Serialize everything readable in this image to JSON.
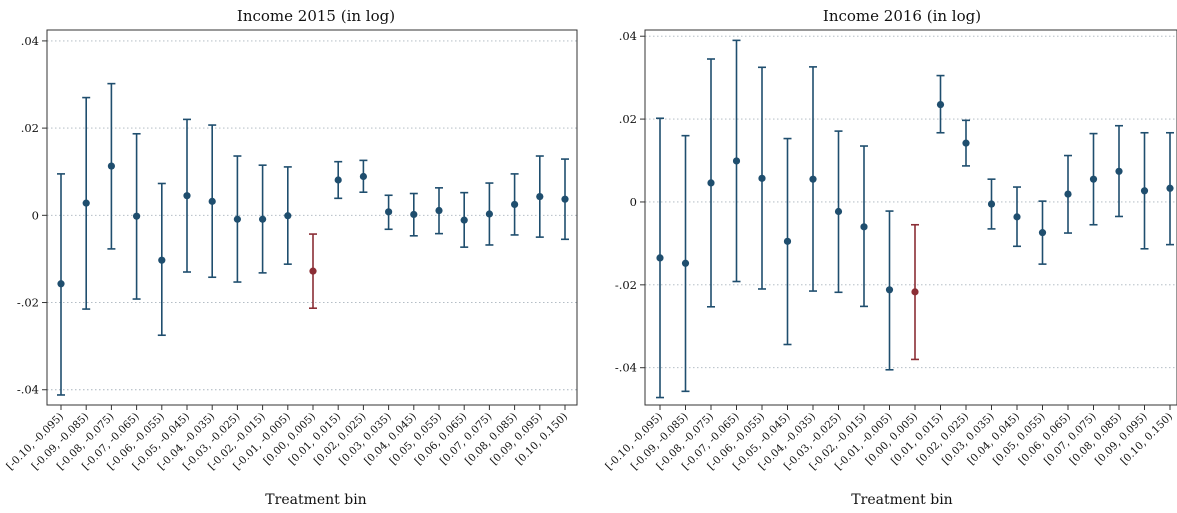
{
  "colors": {
    "series": "#1f4e6e",
    "highlight": "#8b2e35",
    "grid": "#a9b4bd",
    "frame": "#333333"
  },
  "chart_data": [
    {
      "type": "scatter",
      "title": "Income 2015 (in log)",
      "xlabel": "Treatment bin",
      "ylabel": "",
      "ylim": [
        -0.0435,
        0.0425
      ],
      "yticks": [
        -0.04,
        -0.02,
        0,
        0.02,
        0.04
      ],
      "ytick_labels": [
        "-.04",
        "-.02",
        "0",
        ".02",
        ".04"
      ],
      "grid": "horizontal dotted",
      "highlight_category": "[0.00, 0.005)",
      "categories": [
        "[-0.10, -0.095)",
        "[-0.09, -0.085)",
        "[-0.08, -0.075)",
        "[-0.07, -0.065)",
        "[-0.06, -0.055)",
        "[-0.05, -0.045)",
        "[-0.04, -0.035)",
        "[-0.03, -0.025)",
        "[-0.02, -0.015)",
        "[-0.01, -0.005)",
        "[0.00, 0.005)",
        "[0.01, 0.015)",
        "[0.02, 0.025)",
        "[0.03, 0.035)",
        "[0.04, 0.045)",
        "[0.05, 0.055)",
        "[0.06, 0.065)",
        "[0.07, 0.075)",
        "[0.08, 0.085)",
        "[0.09, 0.095)",
        "[0.10, 0.150)"
      ],
      "values": [
        -0.0157,
        0.0028,
        0.0113,
        -0.0002,
        -0.0103,
        0.0045,
        0.0032,
        -0.0009,
        -0.0009,
        -0.0001,
        -0.0128,
        0.0081,
        0.0089,
        0.0008,
        0.0002,
        0.0011,
        -0.0011,
        0.0003,
        0.0025,
        0.0043,
        0.0037
      ],
      "ci_low": [
        -0.0412,
        -0.0215,
        -0.0077,
        -0.0192,
        -0.0275,
        -0.013,
        -0.0142,
        -0.0153,
        -0.0132,
        -0.0112,
        -0.0213,
        0.0039,
        0.0053,
        -0.0032,
        -0.0047,
        -0.0042,
        -0.0073,
        -0.0068,
        -0.0045,
        -0.005,
        -0.0055
      ],
      "ci_high": [
        0.0095,
        0.027,
        0.0302,
        0.0187,
        0.0073,
        0.022,
        0.0207,
        0.0136,
        0.0115,
        0.0111,
        -0.0043,
        0.0123,
        0.0126,
        0.0046,
        0.005,
        0.0063,
        0.0052,
        0.0074,
        0.0095,
        0.0136,
        0.0129
      ]
    },
    {
      "type": "scatter",
      "title": "Income 2016 (in log)",
      "xlabel": "Treatment bin",
      "ylabel": "",
      "ylim": [
        -0.049,
        0.0415
      ],
      "yticks": [
        -0.04,
        -0.02,
        0,
        0.02,
        0.04
      ],
      "ytick_labels": [
        "-.04",
        "-.02",
        "0",
        ".02",
        ".04"
      ],
      "grid": "horizontal dotted",
      "highlight_category": "[0.00, 0.005)",
      "categories": [
        "[-0.10, -0.095)",
        "[-0.09, -0.085)",
        "[-0.08, -0.075)",
        "[-0.07, -0.065)",
        "[-0.06, -0.055)",
        "[-0.05, -0.045)",
        "[-0.04, -0.035)",
        "[-0.03, -0.025)",
        "[-0.02, -0.015)",
        "[-0.01, -0.005)",
        "[0.00, 0.005)",
        "[0.01, 0.015)",
        "[0.02, 0.025)",
        "[0.03, 0.035)",
        "[0.04, 0.045)",
        "[0.05, 0.055)",
        "[0.06, 0.065)",
        "[0.07, 0.075)",
        "[0.08, 0.085)",
        "[0.09, 0.095)",
        "[0.10, 0.150)"
      ],
      "values": [
        -0.0135,
        -0.0148,
        0.0046,
        0.0099,
        0.0057,
        -0.0095,
        0.0055,
        -0.0023,
        -0.006,
        -0.0212,
        -0.0217,
        0.0235,
        0.0142,
        -0.0005,
        -0.0036,
        -0.0074,
        0.0019,
        0.0055,
        0.0074,
        0.0027,
        0.0033
      ],
      "ci_low": [
        -0.0472,
        -0.0457,
        -0.0253,
        -0.0192,
        -0.021,
        -0.0344,
        -0.0215,
        -0.0218,
        -0.0252,
        -0.0405,
        -0.038,
        0.0167,
        0.0087,
        -0.0065,
        -0.0107,
        -0.015,
        -0.0075,
        -0.0055,
        -0.0035,
        -0.0113,
        -0.0103
      ],
      "ci_high": [
        0.0202,
        0.016,
        0.0345,
        0.039,
        0.0325,
        0.0153,
        0.0326,
        0.0171,
        0.0135,
        -0.0022,
        -0.0055,
        0.0305,
        0.0197,
        0.0055,
        0.0036,
        0.0002,
        0.0112,
        0.0165,
        0.0184,
        0.0167,
        0.0167
      ]
    }
  ]
}
